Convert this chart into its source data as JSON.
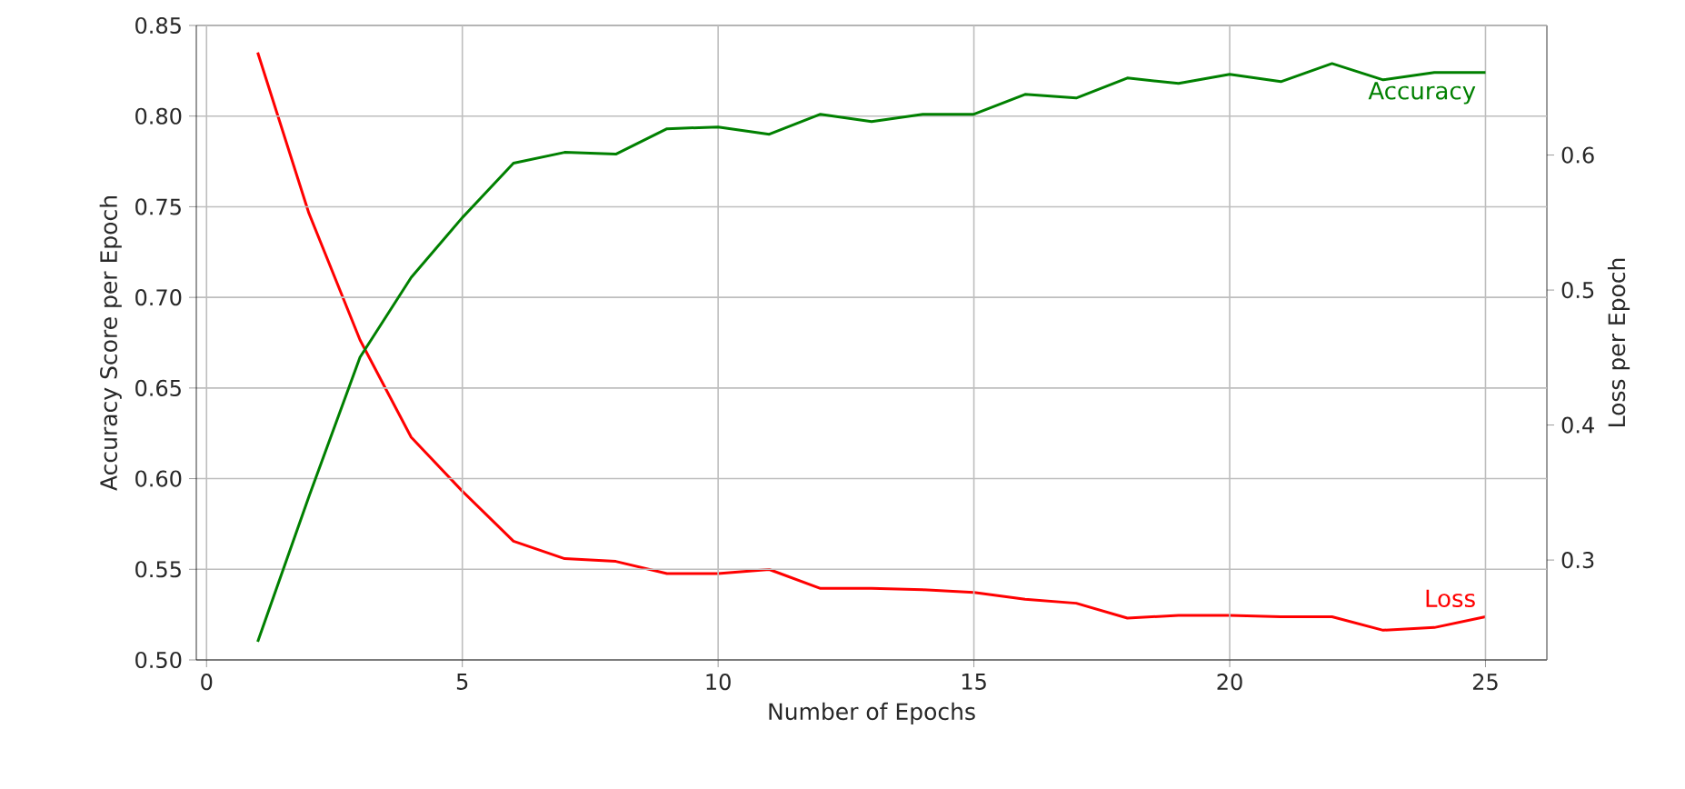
{
  "chart_data": {
    "type": "line",
    "xlabel": "Number of Epochs",
    "ylabel": "Accuracy Score per Epoch",
    "y2label": "Loss per Epoch",
    "x": [
      1,
      2,
      3,
      4,
      5,
      6,
      7,
      8,
      9,
      10,
      11,
      12,
      13,
      14,
      15,
      16,
      17,
      18,
      19,
      20,
      21,
      22,
      23,
      24,
      25
    ],
    "series": [
      {
        "name": "Accuracy",
        "color": "#008000",
        "values": [
          0.51,
          0.59,
          0.667,
          0.711,
          0.744,
          0.774,
          0.78,
          0.779,
          0.793,
          0.794,
          0.79,
          0.801,
          0.797,
          0.801,
          0.801,
          0.812,
          0.81,
          0.821,
          0.818,
          0.823,
          0.819,
          0.829,
          0.82,
          0.824,
          0.824
        ]
      },
      {
        "name": "Loss",
        "color": "#ff0000",
        "axis": "y2",
        "values": [
          0.676,
          0.557,
          0.463,
          0.391,
          0.351,
          0.314,
          0.301,
          0.299,
          0.29,
          0.29,
          0.293,
          0.279,
          0.279,
          0.278,
          0.276,
          0.271,
          0.268,
          0.257,
          0.259,
          0.259,
          0.258,
          0.258,
          0.248,
          0.25,
          0.258
        ]
      }
    ],
    "xlim": [
      -0.2,
      26.2
    ],
    "xticks": [
      0,
      5,
      10,
      15,
      20,
      25
    ],
    "ylim": [
      0.5,
      0.85
    ],
    "yticks": [
      {
        "value": 0.5,
        "label": "0.50"
      },
      {
        "value": 0.55,
        "label": "0.55"
      },
      {
        "value": 0.6,
        "label": "0.60"
      },
      {
        "value": 0.65,
        "label": "0.65"
      },
      {
        "value": 0.7,
        "label": "0.70"
      },
      {
        "value": 0.75,
        "label": "0.75"
      },
      {
        "value": 0.8,
        "label": "0.80"
      },
      {
        "value": 0.85,
        "label": "0.85"
      }
    ],
    "y2lim": [
      0.226,
      0.696
    ],
    "y2ticks": [
      0.3,
      0.4,
      0.5,
      0.6
    ],
    "grid": true,
    "legend": false,
    "marker": "none",
    "line_style": "solid"
  }
}
